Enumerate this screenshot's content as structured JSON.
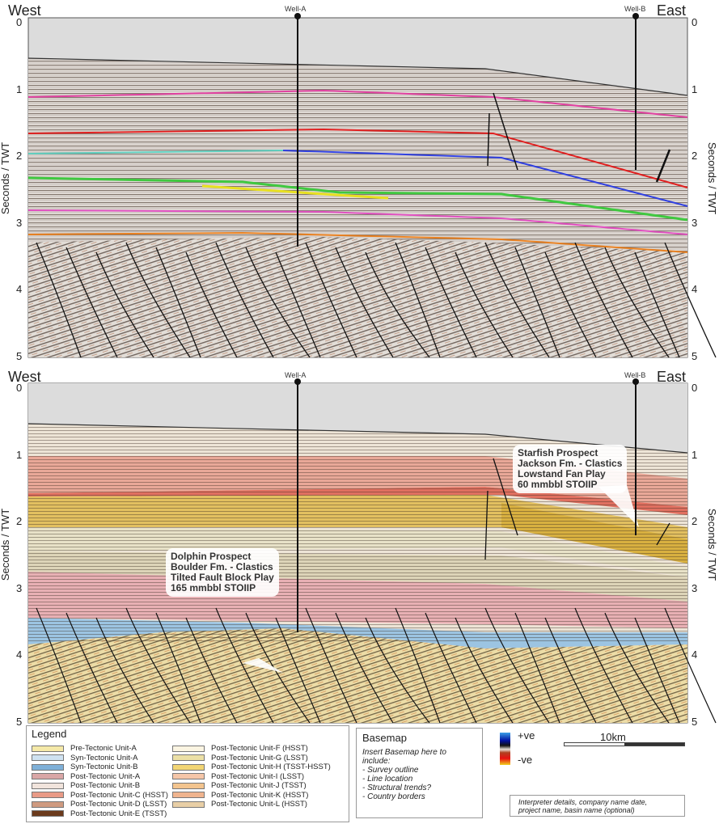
{
  "panels": [
    {
      "id": "uninterpreted",
      "west": "West",
      "east": "East",
      "wells": [
        "Well-A",
        "Well-B"
      ],
      "y_ticks": [
        "0",
        "1",
        "2",
        "3",
        "4",
        "5"
      ],
      "y_label": "Seconds / TWT"
    },
    {
      "id": "interpreted",
      "west": "West",
      "east": "East",
      "wells": [
        "Well-A",
        "Well-B"
      ],
      "y_ticks": [
        "0",
        "1",
        "2",
        "3",
        "4",
        "5"
      ],
      "y_label": "Seconds / TWT",
      "callouts": [
        {
          "lines": [
            "Starfish Prospect",
            "Jackson Fm. - Clastics",
            "Lowstand Fan Play",
            "60 mmbbl STOIIP"
          ]
        },
        {
          "lines": [
            "Dolphin Prospect",
            "Boulder Fm. - Clastics",
            "Tilted Fault Block Play",
            "165 mmbbl STOIIP"
          ]
        }
      ]
    }
  ],
  "legend": {
    "title": "Legend",
    "items": [
      {
        "label": "Pre-Tectonic Unit-A",
        "color": "#f5e9a8"
      },
      {
        "label": "Syn-Tectonic Unit-A",
        "color": "#cfe2f1"
      },
      {
        "label": "Syn-Tectonic Unit-B",
        "color": "#7fb0d8"
      },
      {
        "label": "Post-Tectonic Unit-A",
        "color": "#d9a6a6"
      },
      {
        "label": "Post-Tectonic Unit-B",
        "color": "#f1e4dc"
      },
      {
        "label": "Post-Tectonic Unit-C (HSST)",
        "color": "#e99a86"
      },
      {
        "label": "Post-Tectonic Unit-D (LSST)",
        "color": "#cf9a80"
      },
      {
        "label": "Post-Tectonic Unit-E (TSST)",
        "color": "#6b3a1c"
      },
      {
        "label": "Post-Tectonic Unit-F (HSST)",
        "color": "#fbf5e2"
      },
      {
        "label": "Post-Tectonic Unit-G (LSST)",
        "color": "#ece0a6"
      },
      {
        "label": "Post-Tectonic Unit-H (TSST-HSST)",
        "color": "#f2d574"
      },
      {
        "label": "Post-Tectonic Unit-I (LSST)",
        "color": "#f5c6a8"
      },
      {
        "label": "Post-Tectonic Unit-J (TSST)",
        "color": "#f3c48e"
      },
      {
        "label": "Post-Tectonic Unit-K (HSST)",
        "color": "#f0b48e"
      },
      {
        "label": "Post-Tectonic Unit-L (HSST)",
        "color": "#e8cfa6"
      }
    ]
  },
  "basemap": {
    "title": "Basemap",
    "lines": [
      "Insert Basemap here to",
      "include:",
      "- Survey outline",
      "- Line location",
      "- Structural trends?",
      "- Country borders"
    ]
  },
  "polarity": {
    "positive": "+ve",
    "negative": "-ve"
  },
  "scale_bar": {
    "label": "10km"
  },
  "credits": {
    "lines": [
      "Interpreter details, company name date,",
      "project name, basin name (optional)"
    ]
  }
}
